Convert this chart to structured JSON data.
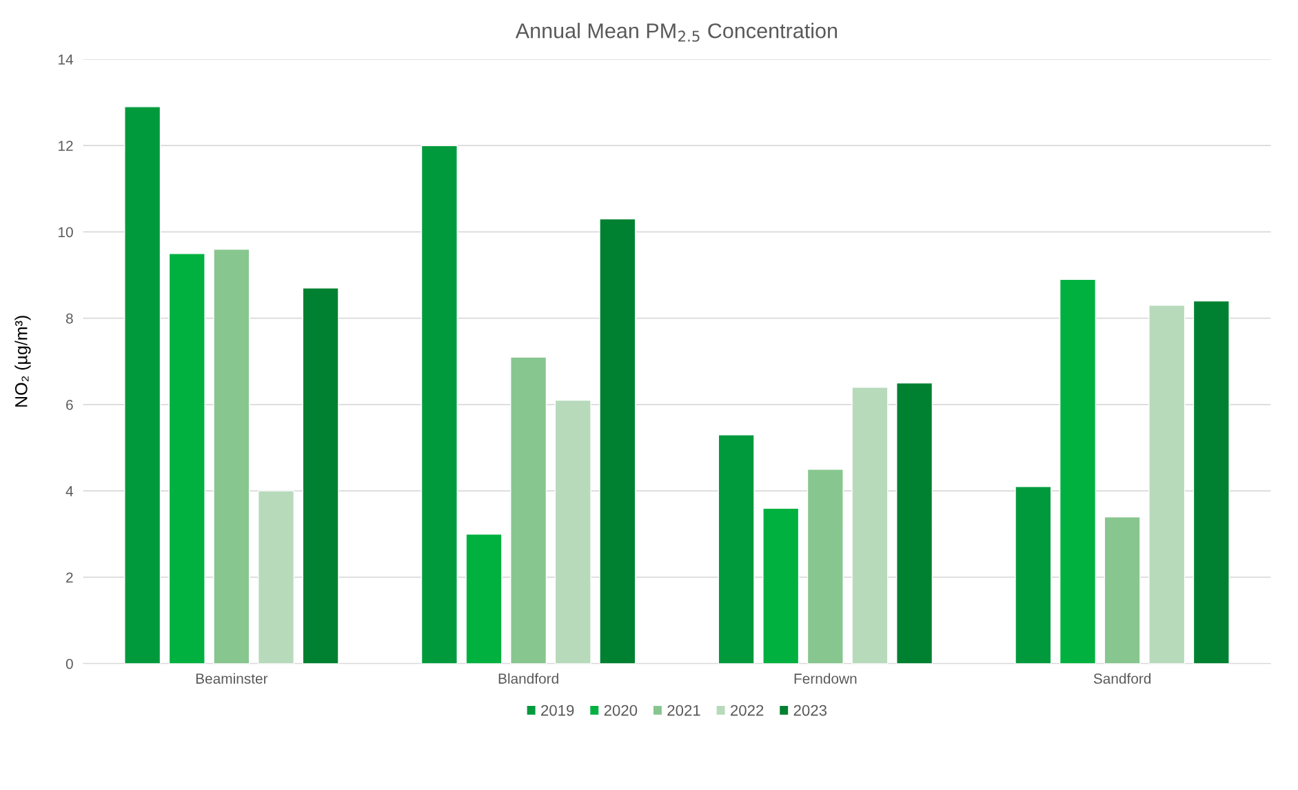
{
  "chart_data": {
    "type": "bar",
    "title": "Annual Mean PM$_{2.5}$ Concentration",
    "ylabel": "NO₂ (µg/m³)",
    "categories": [
      "Beaminster",
      "Blandford",
      "Ferndown",
      "Sandford"
    ],
    "series": [
      {
        "name": "2019",
        "color": "#009a3d",
        "values": [
          12.9,
          12.0,
          5.3,
          4.1
        ]
      },
      {
        "name": "2020",
        "color": "#00b140",
        "values": [
          9.5,
          3.0,
          3.6,
          8.9
        ]
      },
      {
        "name": "2021",
        "color": "#88c68f",
        "values": [
          9.6,
          7.1,
          4.5,
          3.4
        ]
      },
      {
        "name": "2022",
        "color": "#b7dabb",
        "values": [
          4.0,
          6.1,
          6.4,
          8.3
        ]
      },
      {
        "name": "2023",
        "color": "#008131",
        "values": [
          8.7,
          10.3,
          6.5,
          8.4
        ]
      }
    ],
    "ylim": [
      0,
      14
    ],
    "yticks": [
      0,
      2,
      4,
      6,
      8,
      10,
      12,
      14
    ],
    "grid": "y",
    "legend": "bottom"
  }
}
